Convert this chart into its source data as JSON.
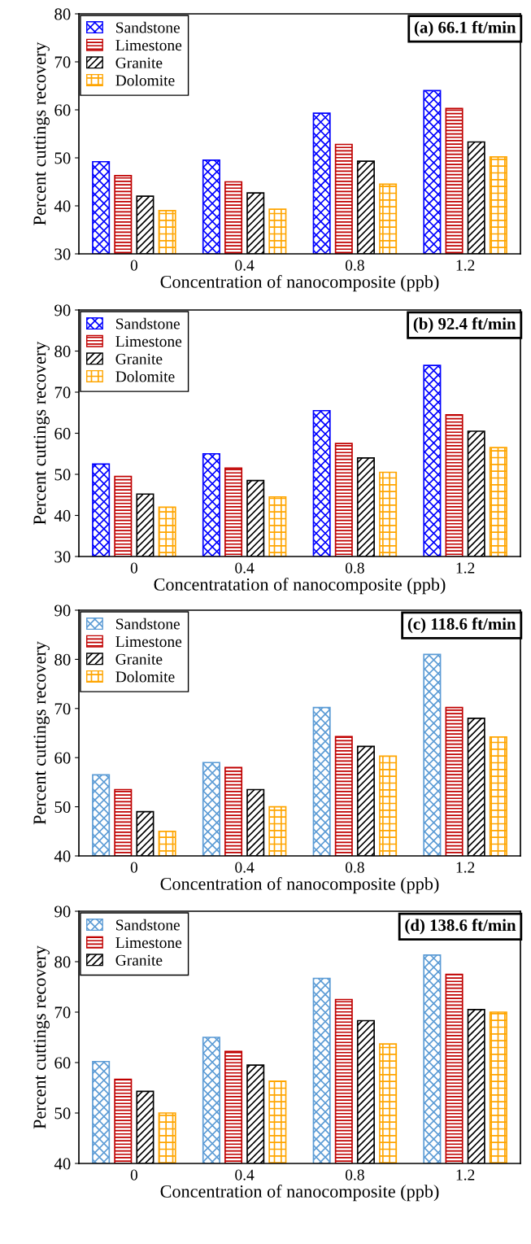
{
  "chart_data": [
    {
      "type": "bar",
      "title": "(a) 66.1 ft/min",
      "xlabel": "Concentration of nanocomposite (ppb)",
      "ylabel": "Percent cuttings recovery",
      "categories": [
        "0",
        "0.4",
        "0.8",
        "1.2"
      ],
      "ylim": [
        30,
        80
      ],
      "yticks": [
        30,
        40,
        50,
        60,
        70,
        80
      ],
      "grid": false,
      "legend": "top left",
      "series": [
        {
          "name": "Sandstone",
          "color": "#0000ff",
          "values": [
            49.2,
            49.5,
            59.3,
            64.0
          ]
        },
        {
          "name": "Limestone",
          "color": "#c00000",
          "values": [
            46.3,
            45.0,
            52.8,
            60.3
          ]
        },
        {
          "name": "Granite",
          "color": "#000000",
          "values": [
            42.0,
            42.7,
            49.3,
            53.3
          ]
        },
        {
          "name": "Dolomite",
          "color": "#ffa500",
          "values": [
            39.0,
            39.3,
            44.5,
            50.2
          ]
        }
      ]
    },
    {
      "type": "bar",
      "title": "(b) 92.4 ft/min",
      "xlabel": "Concentratation of nanocomposite (ppb)",
      "ylabel": "Percent cuttings recovery",
      "categories": [
        "0",
        "0.4",
        "0.8",
        "1.2"
      ],
      "ylim": [
        30,
        90
      ],
      "yticks": [
        30,
        40,
        50,
        60,
        70,
        80,
        90
      ],
      "grid": false,
      "legend": "top left",
      "series": [
        {
          "name": "Sandstone",
          "color": "#0000ff",
          "values": [
            52.5,
            55.0,
            65.5,
            76.5
          ]
        },
        {
          "name": "Limestone",
          "color": "#c00000",
          "values": [
            49.5,
            51.5,
            57.5,
            64.5
          ]
        },
        {
          "name": "Granite",
          "color": "#000000",
          "values": [
            45.2,
            48.5,
            54.0,
            60.5
          ]
        },
        {
          "name": "Dolomite",
          "color": "#ffa500",
          "values": [
            42.0,
            44.5,
            50.5,
            56.5
          ]
        }
      ]
    },
    {
      "type": "bar",
      "title": "(c) 118.6 ft/min",
      "xlabel": "Concentration of nanocomposite (ppb)",
      "ylabel": "Percent cuttings recovery",
      "categories": [
        "0",
        "0.4",
        "0.8",
        "1.2"
      ],
      "ylim": [
        40,
        90
      ],
      "yticks": [
        40,
        50,
        60,
        70,
        80,
        90
      ],
      "grid": false,
      "legend": "top left",
      "series": [
        {
          "name": "Sandstone",
          "color": "#5b9bd5",
          "values": [
            56.5,
            59.0,
            70.2,
            81.0
          ]
        },
        {
          "name": "Limestone",
          "color": "#c00000",
          "values": [
            53.5,
            58.0,
            64.3,
            70.2
          ]
        },
        {
          "name": "Granite",
          "color": "#000000",
          "values": [
            49.0,
            53.5,
            62.3,
            68.0
          ]
        },
        {
          "name": "Dolomite",
          "color": "#ffa500",
          "values": [
            45.0,
            50.0,
            60.3,
            64.2
          ]
        }
      ]
    },
    {
      "type": "bar",
      "title": "(d) 138.6 ft/min",
      "xlabel": "Concentration of nanocomposite (ppb)",
      "ylabel": "Percent cuttings recovery",
      "categories": [
        "0",
        "0.4",
        "0.8",
        "1.2"
      ],
      "ylim": [
        40,
        90
      ],
      "yticks": [
        40,
        50,
        60,
        70,
        80,
        90
      ],
      "grid": false,
      "legend": "top left",
      "series": [
        {
          "name": "Sandstone",
          "color": "#5b9bd5",
          "values": [
            60.2,
            65.0,
            76.7,
            81.3
          ]
        },
        {
          "name": "Limestone",
          "color": "#c00000",
          "values": [
            56.7,
            62.2,
            72.5,
            77.5
          ]
        },
        {
          "name": "Granite",
          "color": "#000000",
          "values": [
            54.3,
            59.5,
            68.3,
            70.5
          ]
        },
        {
          "color": "#ffa500",
          "values": [
            50.0,
            56.3,
            63.7,
            70.0
          ]
        }
      ]
    }
  ]
}
